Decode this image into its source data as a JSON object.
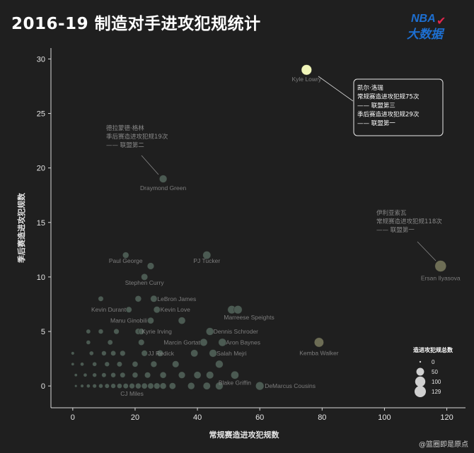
{
  "header": {
    "title": "2016-19 制造对手进攻犯规统计"
  },
  "logo": {
    "text_top": "NBA",
    "text_bottom": "大数据"
  },
  "watermark": "@篮圈即是原点",
  "colors": {
    "background": "#1f1f1f",
    "dot": "#4b5a52",
    "dot_highlight": "#f0f5b8",
    "dot_tan": "#6d6d55"
  },
  "chart_data": {
    "type": "scatter",
    "title": "2016-19 制造对手进攻犯规统计",
    "xlabel": "常规赛造进攻犯规数",
    "ylabel": "季后赛造进攻犯规数",
    "xlim": [
      -7,
      126
    ],
    "ylim": [
      -2,
      31
    ],
    "xticks": [
      0,
      20,
      40,
      60,
      80,
      100,
      120
    ],
    "yticks": [
      0,
      5,
      10,
      15,
      20,
      25,
      30
    ],
    "size_legend": {
      "title": "造进攻犯规总数",
      "values": [
        0,
        50,
        100,
        129
      ]
    },
    "points": [
      {
        "x": 75,
        "y": 29,
        "size": 104,
        "label": "Kyle Lowry",
        "color": "#f0f5b8"
      },
      {
        "x": 118,
        "y": 11,
        "size": 129,
        "label": "Ersan Ilyasova",
        "color": "#6d6d55"
      },
      {
        "x": 29,
        "y": 19,
        "size": 48,
        "label": "Draymond Green"
      },
      {
        "x": 79,
        "y": 4,
        "size": 83,
        "label": "Kemba Walker",
        "color": "#6d6d55"
      },
      {
        "x": 17,
        "y": 12,
        "size": 29,
        "label": "Paul George"
      },
      {
        "x": 43,
        "y": 12,
        "size": 55,
        "label": "PJ Tucker"
      },
      {
        "x": 25,
        "y": 11,
        "size": 36,
        "label": ""
      },
      {
        "x": 23,
        "y": 10,
        "size": 33,
        "label": "Stephen Curry"
      },
      {
        "x": 21,
        "y": 8,
        "size": 29,
        "label": ""
      },
      {
        "x": 26,
        "y": 8,
        "size": 34,
        "label": "LeBron James"
      },
      {
        "x": 9,
        "y": 8,
        "size": 17,
        "label": ""
      },
      {
        "x": 18,
        "y": 7,
        "size": 25,
        "label": "Kevin Durant"
      },
      {
        "x": 27,
        "y": 7,
        "size": 34,
        "label": "Kevin Love"
      },
      {
        "x": 51,
        "y": 7,
        "size": 58,
        "label": ""
      },
      {
        "x": 53,
        "y": 7,
        "size": 60,
        "label": "Marreese Speights"
      },
      {
        "x": 25,
        "y": 6,
        "size": 31,
        "label": "Manu Ginobili"
      },
      {
        "x": 35,
        "y": 6,
        "size": 41,
        "label": ""
      },
      {
        "x": 21,
        "y": 5,
        "size": 26,
        "label": "Kyrie Irving"
      },
      {
        "x": 22,
        "y": 5,
        "size": 27,
        "label": ""
      },
      {
        "x": 44,
        "y": 5,
        "size": 49,
        "label": "Dennis Schroder"
      },
      {
        "x": 5,
        "y": 5,
        "size": 10,
        "label": ""
      },
      {
        "x": 9,
        "y": 5,
        "size": 14,
        "label": ""
      },
      {
        "x": 14,
        "y": 5,
        "size": 19,
        "label": ""
      },
      {
        "x": 42,
        "y": 4,
        "size": 46,
        "label": "Marcin Gortat"
      },
      {
        "x": 48,
        "y": 4,
        "size": 52,
        "label": "Aron Baynes"
      },
      {
        "x": 22,
        "y": 4,
        "size": 26,
        "label": ""
      },
      {
        "x": 12,
        "y": 4,
        "size": 16,
        "label": ""
      },
      {
        "x": 5,
        "y": 4,
        "size": 9,
        "label": ""
      },
      {
        "x": 23,
        "y": 3,
        "size": 26,
        "label": "JJ Redick"
      },
      {
        "x": 45,
        "y": 3,
        "size": 48,
        "label": "Salah Mejri"
      },
      {
        "x": 39,
        "y": 3,
        "size": 42,
        "label": ""
      },
      {
        "x": 28,
        "y": 3,
        "size": 31,
        "label": ""
      },
      {
        "x": 16,
        "y": 3,
        "size": 19,
        "label": ""
      },
      {
        "x": 13,
        "y": 3,
        "size": 16,
        "label": ""
      },
      {
        "x": 10,
        "y": 3,
        "size": 13,
        "label": ""
      },
      {
        "x": 6,
        "y": 3,
        "size": 9,
        "label": ""
      },
      {
        "x": 0,
        "y": 3,
        "size": 3,
        "label": ""
      },
      {
        "x": 47,
        "y": 2,
        "size": 49,
        "label": ""
      },
      {
        "x": 33,
        "y": 2,
        "size": 35,
        "label": ""
      },
      {
        "x": 26,
        "y": 2,
        "size": 28,
        "label": ""
      },
      {
        "x": 20,
        "y": 2,
        "size": 22,
        "label": ""
      },
      {
        "x": 15,
        "y": 2,
        "size": 17,
        "label": ""
      },
      {
        "x": 11,
        "y": 2,
        "size": 13,
        "label": ""
      },
      {
        "x": 7,
        "y": 2,
        "size": 9,
        "label": ""
      },
      {
        "x": 3,
        "y": 2,
        "size": 5,
        "label": ""
      },
      {
        "x": 0,
        "y": 2,
        "size": 2,
        "label": ""
      },
      {
        "x": 52,
        "y": 1,
        "size": 53,
        "label": "Blake Griffin"
      },
      {
        "x": 44,
        "y": 1,
        "size": 45,
        "label": ""
      },
      {
        "x": 40,
        "y": 1,
        "size": 41,
        "label": ""
      },
      {
        "x": 35,
        "y": 1,
        "size": 36,
        "label": ""
      },
      {
        "x": 29,
        "y": 1,
        "size": 30,
        "label": ""
      },
      {
        "x": 24,
        "y": 1,
        "size": 25,
        "label": ""
      },
      {
        "x": 20,
        "y": 1,
        "size": 21,
        "label": ""
      },
      {
        "x": 16,
        "y": 1,
        "size": 17,
        "label": ""
      },
      {
        "x": 13,
        "y": 1,
        "size": 14,
        "label": ""
      },
      {
        "x": 10,
        "y": 1,
        "size": 11,
        "label": ""
      },
      {
        "x": 7,
        "y": 1,
        "size": 8,
        "label": ""
      },
      {
        "x": 4,
        "y": 1,
        "size": 5,
        "label": ""
      },
      {
        "x": 1,
        "y": 1,
        "size": 2,
        "label": ""
      },
      {
        "x": 60,
        "y": 0,
        "size": 60,
        "label": "DeMarcus Cousins"
      },
      {
        "x": 19,
        "y": 0,
        "size": 19,
        "label": "CJ Miles"
      },
      {
        "x": 47,
        "y": 0,
        "size": 47,
        "label": ""
      },
      {
        "x": 43,
        "y": 0,
        "size": 43,
        "label": ""
      },
      {
        "x": 38,
        "y": 0,
        "size": 38,
        "label": ""
      },
      {
        "x": 32,
        "y": 0,
        "size": 32,
        "label": ""
      },
      {
        "x": 29,
        "y": 0,
        "size": 29,
        "label": ""
      },
      {
        "x": 27,
        "y": 0,
        "size": 27,
        "label": ""
      },
      {
        "x": 25,
        "y": 0,
        "size": 25,
        "label": ""
      },
      {
        "x": 23,
        "y": 0,
        "size": 23,
        "label": ""
      },
      {
        "x": 21,
        "y": 0,
        "size": 21,
        "label": ""
      },
      {
        "x": 17,
        "y": 0,
        "size": 17,
        "label": ""
      },
      {
        "x": 15,
        "y": 0,
        "size": 15,
        "label": ""
      },
      {
        "x": 13,
        "y": 0,
        "size": 13,
        "label": ""
      },
      {
        "x": 11,
        "y": 0,
        "size": 11,
        "label": ""
      },
      {
        "x": 9,
        "y": 0,
        "size": 9,
        "label": ""
      },
      {
        "x": 7,
        "y": 0,
        "size": 7,
        "label": ""
      },
      {
        "x": 5,
        "y": 0,
        "size": 5,
        "label": ""
      },
      {
        "x": 3,
        "y": 0,
        "size": 3,
        "label": ""
      },
      {
        "x": 1,
        "y": 0,
        "size": 1,
        "label": ""
      }
    ],
    "annotations": {
      "draymond": [
        "德拉蒙德·格林",
        "季后赛造进攻犯规19次",
        "—— 联盟第二"
      ],
      "ilyasova": [
        "伊利亚索瓦",
        "常规赛造进攻犯规118次",
        "—— 联盟第一"
      ],
      "lowry_box": [
        "凯尔·洛瑞",
        "常规赛造进攻犯规75次",
        "—— 联盟第三",
        "季后赛造进攻犯规29次",
        "—— 联盟第一"
      ]
    }
  }
}
